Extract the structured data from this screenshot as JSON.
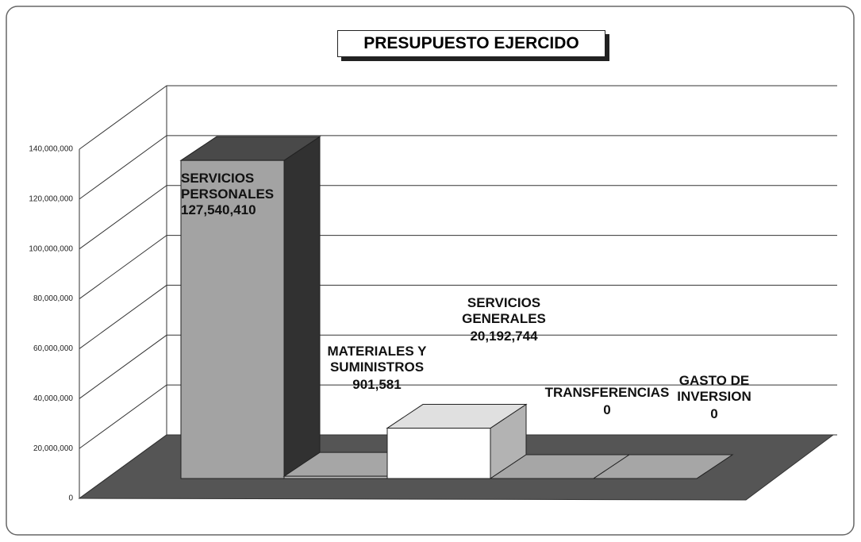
{
  "chart_data": {
    "type": "bar3d",
    "title": "PRESUPUESTO EJERCIDO",
    "categories": [
      "SERVICIOS\nPERSONALES",
      "MATERIALES Y\nSUMINISTROS",
      "SERVICIOS\nGENERALES",
      "TRANSFERENCIAS",
      "GASTO DE\nINVERSION"
    ],
    "values": [
      127540410,
      901581,
      20192744,
      0,
      0
    ],
    "value_labels": [
      "127,540,410",
      "901,581",
      "20,192,744",
      "0",
      "0"
    ],
    "colors": [
      "#a3a3a3",
      "#bdbdbd",
      "#ffffff",
      "#bdbdbd",
      "#bdbdbd"
    ],
    "ylim": [
      0,
      140000000
    ],
    "yticks": [
      0,
      {
        "value": 20000000,
        "label": "20,000,000"
      },
      {
        "value": 40000000,
        "label": "40,000,000"
      },
      {
        "value": 60000000,
        "label": "60,000,000"
      },
      {
        "value": 80000000,
        "label": "80,000,000"
      },
      {
        "value": 100000000,
        "label": "100,000,000"
      },
      {
        "value": 120000000,
        "label": "120,000,000"
      },
      {
        "value": 140000000,
        "label": "140,000,000"
      }
    ],
    "grid": true
  }
}
